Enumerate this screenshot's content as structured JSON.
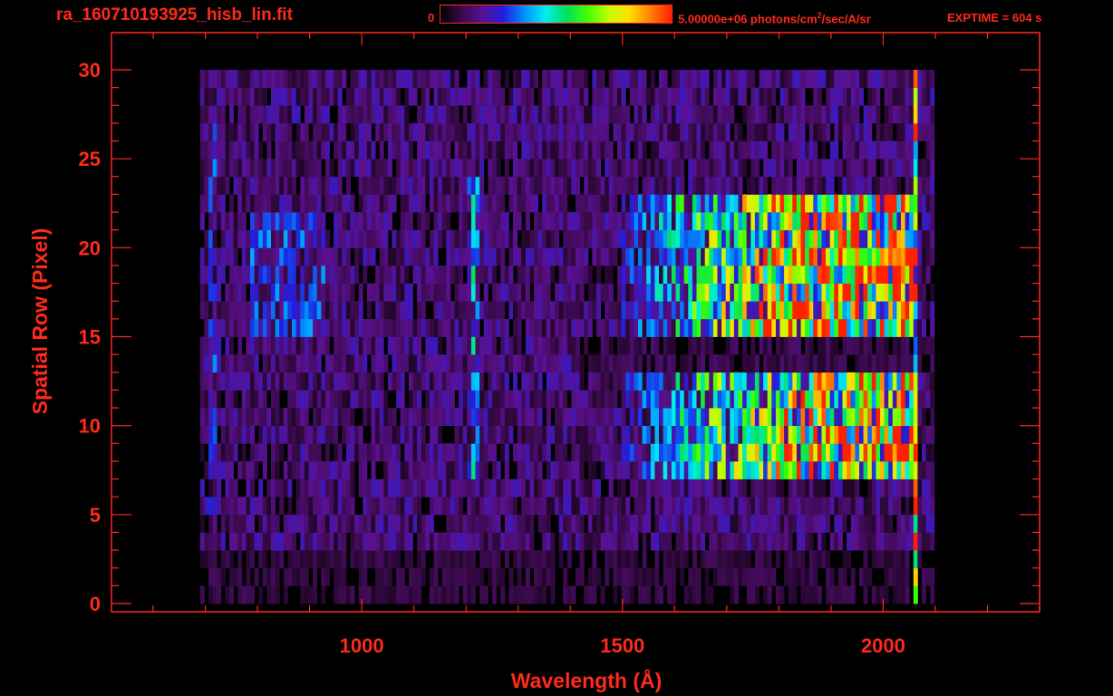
{
  "header": {
    "file_name": "ra_160710193925_hisb_lin.fit",
    "colorbar_min": "0",
    "colorbar_max_prefix": "5.00000e+06 photons/cm",
    "colorbar_max_sup": "2",
    "colorbar_max_suffix": "/sec/A/sr",
    "exptime": "EXPTIME = 604 s"
  },
  "colors": {
    "axis": "#ff2a1a",
    "background": "#000000",
    "colormap": [
      "#000000",
      "#3a0a4a",
      "#5a1090",
      "#2020e0",
      "#0090ff",
      "#00f0f0",
      "#00e060",
      "#40ff00",
      "#c0ff00",
      "#ffe000",
      "#ff8000",
      "#ff2000"
    ]
  },
  "chart_data": {
    "type": "heatmap",
    "title": "",
    "xlabel": "Wavelength (Å)",
    "ylabel": "Spatial Row (Pixel)",
    "xlim": [
      520,
      2300
    ],
    "ylim": [
      0,
      30
    ],
    "x_ticks": [
      1000,
      1500,
      2000
    ],
    "y_ticks": [
      0,
      5,
      10,
      15,
      20,
      25,
      30
    ],
    "x_minor_step": 100,
    "y_minor_step": 1,
    "colorbar": {
      "min": 0,
      "max": 5000000,
      "units": "photons/cm^2/sec/A/sr",
      "scale": "linear"
    },
    "signal_extent": {
      "wavelength_min": 690,
      "wavelength_max": 2080,
      "row_min": 3,
      "row_max": 30
    },
    "features": [
      {
        "type": "emission_line",
        "wavelength": 1216,
        "rows": [
          7,
          24
        ]
      },
      {
        "type": "emission_line",
        "wavelength": 715,
        "rows": [
          5,
          28
        ]
      },
      {
        "type": "band",
        "wavelength_range": [
          830,
          890
        ],
        "rows": [
          15,
          22
        ]
      },
      {
        "type": "bright_region",
        "wavelength_range": [
          1650,
          2060
        ],
        "rows": [
          15,
          23
        ]
      },
      {
        "type": "bright_region",
        "wavelength_range": [
          1650,
          2060
        ],
        "rows": [
          7,
          13
        ]
      },
      {
        "type": "edge",
        "wavelength": 2060,
        "rows": [
          0,
          30
        ]
      }
    ]
  }
}
